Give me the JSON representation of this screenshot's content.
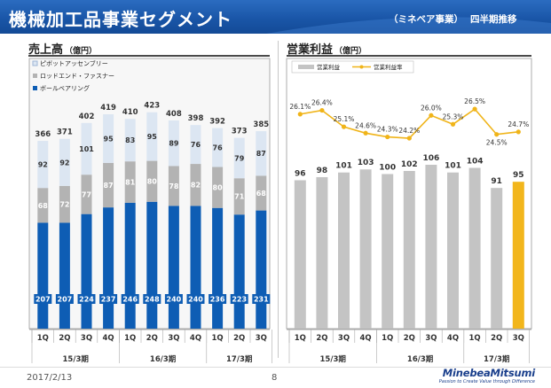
{
  "header": {
    "title": "機械加工品事業セグメント",
    "segment": "（ミネベア事業）",
    "trend": "四半期推移"
  },
  "colors": {
    "pivot": "#dce6f2",
    "rod": "#b3b3b3",
    "ball": "#0e5db4",
    "op_bar": "#c4c4c4",
    "op_highlight": "#f2b61c",
    "op_line": "#f0b419"
  },
  "chart_data": [
    {
      "type": "bar",
      "stacked": true,
      "title": "売上高",
      "unit": "（億円）",
      "quarters": [
        "1Q",
        "2Q",
        "3Q",
        "4Q",
        "1Q",
        "2Q",
        "3Q",
        "4Q",
        "1Q",
        "2Q",
        "3Q"
      ],
      "periods": [
        {
          "label": "15/3期",
          "count": 4
        },
        {
          "label": "16/3期",
          "count": 4
        },
        {
          "label": "17/3期",
          "count": 3
        }
      ],
      "series": [
        {
          "name": "ボールベアリング",
          "values": [
            207,
            207,
            224,
            237,
            246,
            248,
            240,
            240,
            236,
            223,
            231
          ]
        },
        {
          "name": "ロッドエンド・ファスナー",
          "values": [
            68,
            72,
            77,
            87,
            81,
            80,
            78,
            82,
            80,
            71,
            68
          ]
        },
        {
          "name": "ピボットアッセンブリー",
          "values": [
            92,
            92,
            101,
            95,
            83,
            95,
            89,
            76,
            76,
            79,
            87
          ]
        }
      ],
      "totals": [
        366,
        371,
        402,
        419,
        410,
        423,
        408,
        398,
        392,
        373,
        385
      ],
      "legend": [
        "ピボットアッセンブリー",
        "ロッドエンド・ファスナー",
        "ボールベアリング"
      ],
      "ylim": [
        0,
        440
      ]
    },
    {
      "type": "bar+line",
      "title": "営業利益",
      "unit": "（億円）",
      "quarters": [
        "1Q",
        "2Q",
        "3Q",
        "4Q",
        "1Q",
        "2Q",
        "3Q",
        "4Q",
        "1Q",
        "2Q",
        "3Q"
      ],
      "periods": [
        {
          "label": "15/3期",
          "count": 4
        },
        {
          "label": "16/3期",
          "count": 4
        },
        {
          "label": "17/3期",
          "count": 3
        }
      ],
      "legend": [
        "営業利益",
        "営業利益率"
      ],
      "bars": {
        "name": "営業利益",
        "values": [
          96,
          98,
          101,
          103,
          100,
          102,
          106,
          101,
          104,
          91,
          95
        ]
      },
      "line": {
        "name": "営業利益率",
        "values": [
          26.1,
          26.4,
          25.1,
          24.6,
          24.3,
          24.2,
          26.0,
          25.3,
          26.5,
          24.5,
          24.7
        ],
        "labels": [
          "26.1%",
          "26.4%",
          "25.1%",
          "24.6%",
          "24.3%",
          "24.2%",
          "26.0%",
          "25.3%",
          "26.5%",
          "24.5%",
          "24.7%"
        ]
      },
      "ylim": [
        0,
        125
      ]
    }
  ],
  "footer": {
    "date": "2017/2/13",
    "page": "8",
    "logo": "MinebeaMitsumi",
    "tagline": "Passion to Create Value through Difference"
  }
}
